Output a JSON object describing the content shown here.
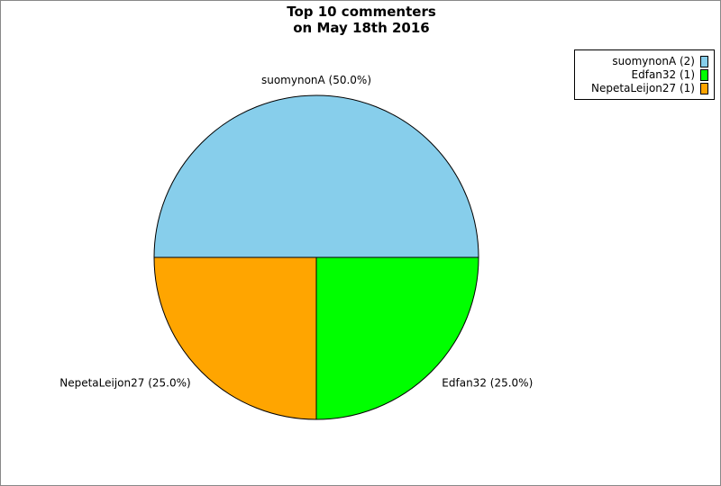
{
  "chart_data": {
    "type": "pie",
    "title": "Top 10 commenters\non May 18th 2016",
    "title_lines": [
      "Top 10 commenters",
      "on May 18th 2016"
    ],
    "slices": [
      {
        "name": "suomynonA",
        "value": 2,
        "percent": 50.0,
        "label": "suomynonA (50.0%)",
        "legend": "suomynonA (2)",
        "color": "#87CEEB"
      },
      {
        "name": "Edfan32",
        "value": 1,
        "percent": 25.0,
        "label": "Edfan32 (25.0%)",
        "legend": "Edfan32 (1)",
        "color": "#00FF00"
      },
      {
        "name": "NepetaLeijon27",
        "value": 1,
        "percent": 25.0,
        "label": "NepetaLeijon27 (25.0%)",
        "legend": "NepetaLeijon27 (1)",
        "color": "#FFA500"
      }
    ],
    "legend_position": "top-right"
  }
}
